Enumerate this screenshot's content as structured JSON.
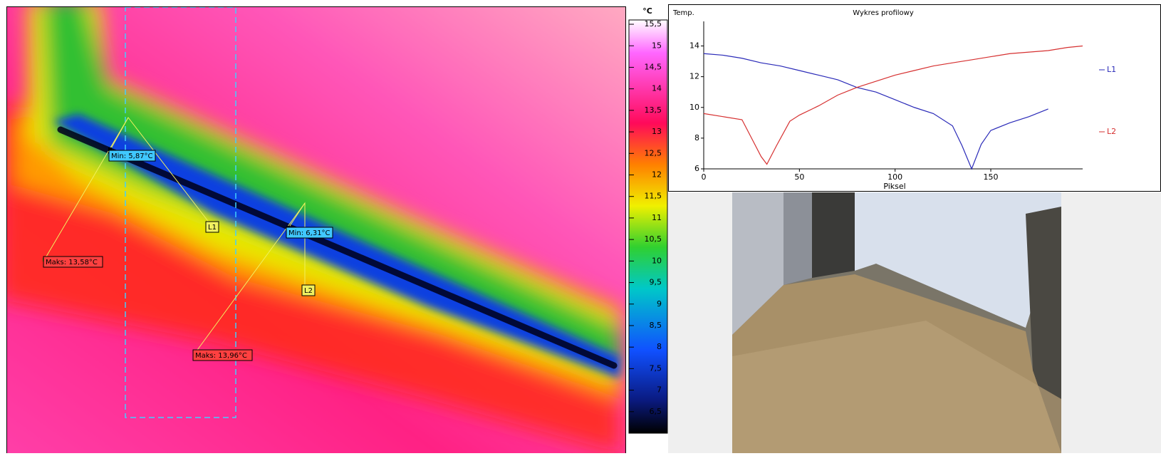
{
  "thermal_image": {
    "markers": [
      {
        "label": "Min: 5,87°C"
      },
      {
        "label": "Maks: 13,58°C"
      },
      {
        "label": "Min: 6,31°C"
      },
      {
        "label": "Maks: 13,96°C"
      }
    ],
    "lines": [
      "L1",
      "L2"
    ]
  },
  "color_scale": {
    "unit": "°C",
    "lim": [
      6,
      15.6
    ],
    "ticks": [
      {
        "value": 15.5,
        "label": "15,5"
      },
      15,
      {
        "value": 14.5,
        "label": "14,5"
      },
      14,
      {
        "value": 13.5,
        "label": "13,5"
      },
      13,
      {
        "value": 12.5,
        "label": "12,5"
      },
      12,
      {
        "value": 11.5,
        "label": "11,5"
      },
      11,
      {
        "value": 10.5,
        "label": "10,5"
      },
      10,
      {
        "value": 9.5,
        "label": "9,5"
      },
      9,
      {
        "value": 8.5,
        "label": "8,5"
      },
      8,
      {
        "value": 7.5,
        "label": "7,5"
      },
      7,
      {
        "value": 6.5,
        "label": "6,5"
      }
    ]
  },
  "chart_data": {
    "type": "line",
    "title": "Wykres profilowy",
    "y_label": "Temp.",
    "x_label": "Piksel",
    "xlim": [
      0,
      198
    ],
    "ylim": [
      6,
      15.6
    ],
    "xticks": [
      0,
      50,
      100,
      150
    ],
    "yticks": [
      6,
      8,
      10,
      12,
      14
    ],
    "series": [
      {
        "name": "L1",
        "color": "#2a2ab8",
        "x": [
          0,
          10,
          20,
          30,
          40,
          50,
          60,
          70,
          80,
          90,
          100,
          110,
          120,
          130,
          135,
          140,
          145,
          150,
          160,
          170,
          180
        ],
        "values": [
          13.5,
          13.4,
          13.2,
          12.9,
          12.7,
          12.4,
          12.1,
          11.8,
          11.3,
          11.0,
          10.5,
          10.0,
          9.6,
          8.8,
          7.5,
          6.0,
          7.6,
          8.5,
          9.0,
          9.4,
          9.9
        ]
      },
      {
        "name": "L2",
        "color": "#d63030",
        "x": [
          0,
          10,
          20,
          25,
          30,
          33,
          38,
          45,
          50,
          60,
          70,
          80,
          90,
          100,
          110,
          120,
          130,
          140,
          150,
          160,
          170,
          180,
          190,
          198
        ],
        "values": [
          9.6,
          9.4,
          9.2,
          8.0,
          6.8,
          6.3,
          7.5,
          9.1,
          9.5,
          10.1,
          10.8,
          11.3,
          11.7,
          12.1,
          12.4,
          12.7,
          12.9,
          13.1,
          13.3,
          13.5,
          13.6,
          13.7,
          13.9,
          14.0
        ]
      }
    ]
  }
}
